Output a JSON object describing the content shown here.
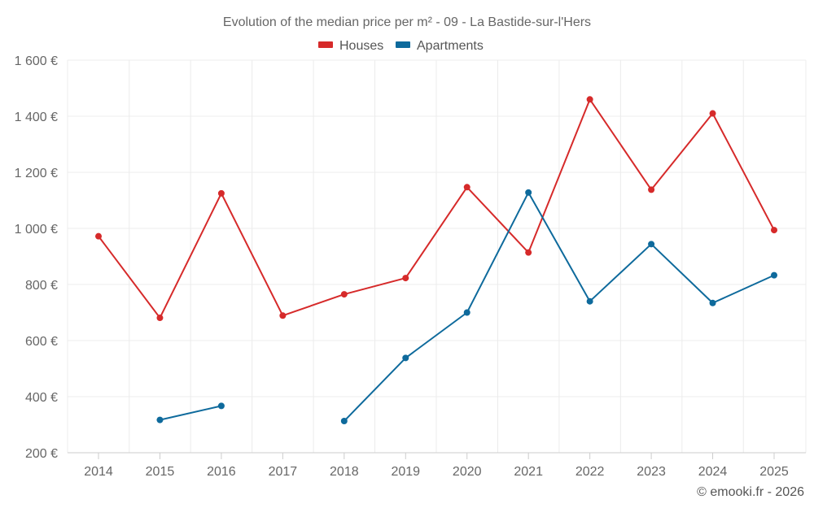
{
  "chart_data": {
    "type": "line",
    "title": "Evolution of the median price per m² - 09 - La Bastide-sur-l'Hers",
    "categories": [
      "2014",
      "2015",
      "2016",
      "2017",
      "2018",
      "2019",
      "2020",
      "2021",
      "2022",
      "2023",
      "2024",
      "2025"
    ],
    "y_ticks": [
      "200 €",
      "400 €",
      "600 €",
      "800 €",
      "1 000 €",
      "1 200 €",
      "1 400 €",
      "1 600 €"
    ],
    "ylim": [
      200,
      1600
    ],
    "y_tick_values": [
      200,
      400,
      600,
      800,
      1000,
      1200,
      1400,
      1600
    ],
    "legend_position": "top-center",
    "grid": true,
    "series": [
      {
        "name": "Houses",
        "color": "#d62a2a",
        "values": [
          972,
          681,
          1125,
          689,
          765,
          823,
          1147,
          914,
          1460,
          1138,
          1410,
          994
        ]
      },
      {
        "name": "Apartments",
        "color": "#0e6a9c",
        "values": [
          null,
          317,
          367,
          null,
          313,
          538,
          700,
          1128,
          740,
          944,
          734,
          833
        ]
      }
    ],
    "credit": "© emooki.fr - 2026"
  }
}
